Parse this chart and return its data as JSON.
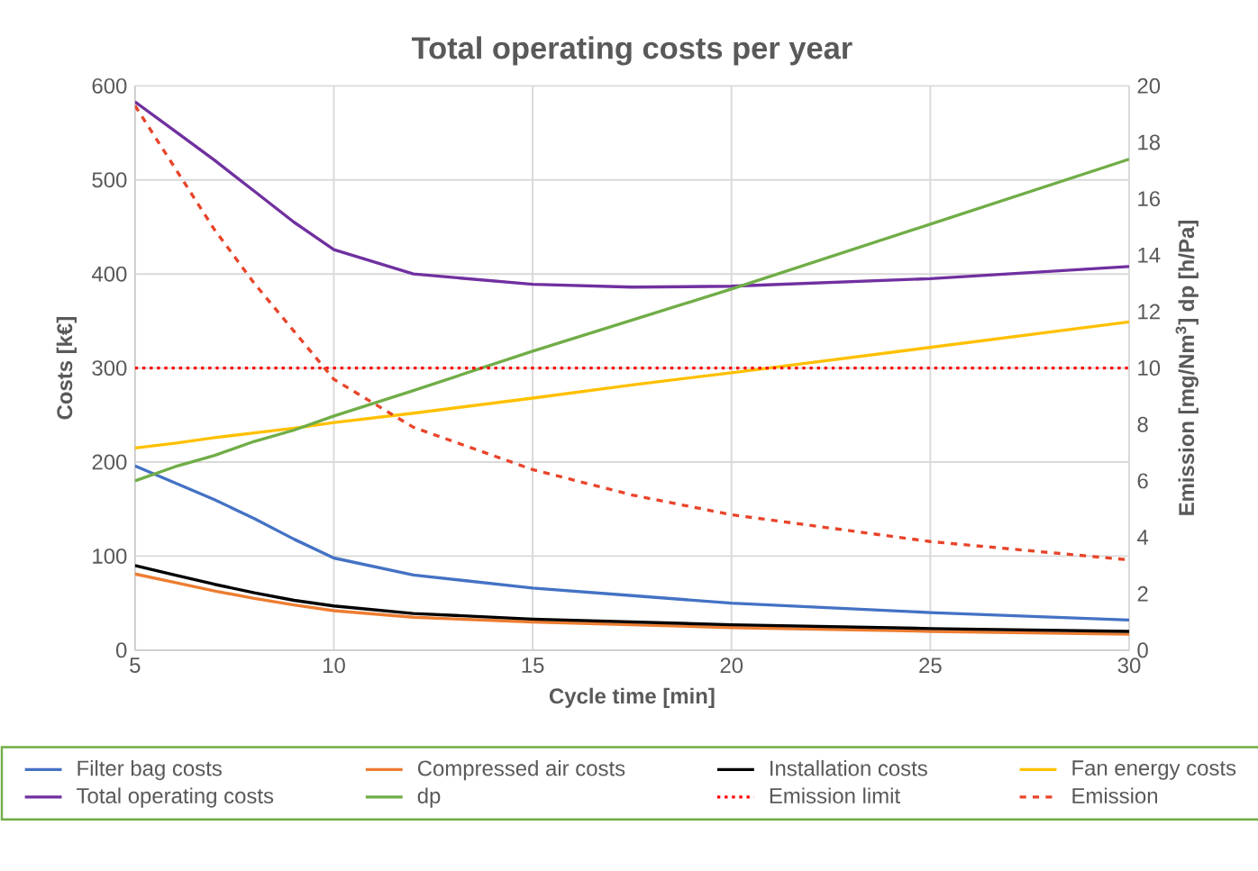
{
  "chart_data": {
    "type": "line",
    "title": "Total operating costs per year",
    "xlabel": "Cycle time [min]",
    "ylabel": "Costs [k€]",
    "y2label": "Emission [mg/Nm$^{3}$] dp [h/Pa]",
    "x": [
      5,
      6,
      7,
      8,
      9,
      10,
      12,
      15,
      17.5,
      20,
      25,
      30
    ],
    "series": [
      {
        "name": "Filter bag costs",
        "color": "#4472c4",
        "values": [
          196,
          178,
          160,
          140,
          118,
          98,
          80,
          66,
          58,
          50,
          40,
          32
        ]
      },
      {
        "name": "Compressed air costs",
        "color": "#ed7d31",
        "values": [
          81,
          72,
          63,
          55,
          48,
          42,
          35,
          30,
          27,
          24,
          20,
          17
        ]
      },
      {
        "name": "Installation costs",
        "color": "#000000",
        "values": [
          90,
          80,
          70,
          61,
          53,
          47,
          39,
          33,
          30,
          27,
          23,
          20
        ]
      },
      {
        "name": "Fan energy costs",
        "color": "#ffc000",
        "values": [
          215,
          220,
          226,
          231,
          236,
          242,
          252,
          268,
          282,
          295,
          322,
          349
        ]
      },
      {
        "name": "Total operating costs",
        "color": "#7030a0",
        "values": [
          583,
          552,
          521,
          488,
          455,
          426,
          400,
          389,
          386,
          387,
          395,
          408
        ]
      },
      {
        "name": "dp",
        "color": "#70ad47",
        "axis": "y2",
        "values": [
          6.0,
          6.5,
          6.9,
          7.4,
          7.8,
          8.3,
          9.2,
          10.6,
          11.7,
          12.8,
          15.1,
          17.4
        ]
      },
      {
        "name": "Emission limit",
        "color": "#ff0000",
        "axis": "y2",
        "line_style": "dotted",
        "x": [
          5,
          30
        ],
        "values": [
          10,
          10
        ]
      },
      {
        "name": "Emission",
        "color": "#e8442a",
        "axis": "y2",
        "line_style": "dashed",
        "values": [
          19.3,
          17.1,
          14.9,
          13.0,
          11.3,
          9.6,
          7.9,
          6.4,
          5.5,
          4.8,
          3.85,
          3.2
        ]
      }
    ],
    "xlim": [
      5,
      30
    ],
    "xticks": [
      5,
      10,
      15,
      20,
      25,
      30
    ],
    "ylim": [
      0,
      600
    ],
    "yticks": [
      0,
      100,
      200,
      300,
      400,
      500,
      600
    ],
    "y2lim": [
      0,
      20
    ],
    "y2ticks": [
      0,
      2,
      4,
      6,
      8,
      10,
      12,
      14,
      16,
      18,
      20
    ],
    "grid": true,
    "legend": "bottom",
    "marker": "none",
    "line_style": "solid"
  }
}
